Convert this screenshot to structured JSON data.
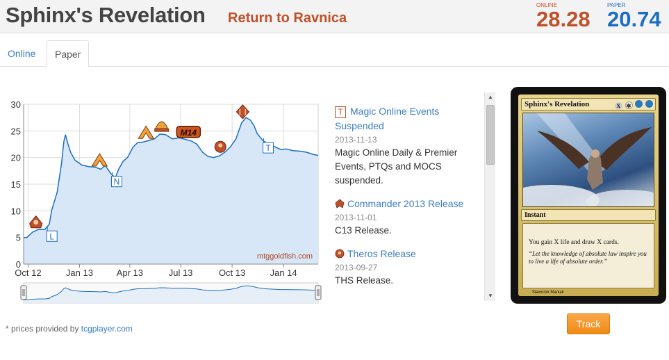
{
  "header": {
    "card_name": "Sphinx's Revelation",
    "set_name": "Return to Ravnica",
    "online_label": "ONLINE",
    "online_price": "28.28",
    "paper_label": "PAPER",
    "paper_price": "20.74"
  },
  "tabs": [
    {
      "label": "Online",
      "active": false
    },
    {
      "label": "Paper",
      "active": true
    }
  ],
  "chart_data": {
    "type": "area",
    "title": "",
    "xlabel": "",
    "ylabel": "",
    "ylim": [
      0,
      30
    ],
    "y_ticks": [
      "0",
      "5",
      "10",
      "15",
      "20",
      "25",
      "30"
    ],
    "x_ticks": [
      "Oct 12",
      "Jan 13",
      "Apr 13",
      "Jul 13",
      "Oct 13",
      "Jan 14"
    ],
    "x_tick_days": [
      0,
      92,
      182,
      273,
      365,
      457
    ],
    "x_range_days": [
      -8,
      519
    ],
    "watermark": "mtggoldfish.com",
    "grid": true,
    "series": [
      {
        "color": "#1b6ec2",
        "fill": "#d7e7f7",
        "points": [
          [
            -8,
            5.0
          ],
          [
            -2,
            5.0
          ],
          [
            8,
            6.0
          ],
          [
            18,
            6.5
          ],
          [
            30,
            6.5
          ],
          [
            38,
            7.5
          ],
          [
            42,
            10
          ],
          [
            52,
            13.5
          ],
          [
            60,
            19
          ],
          [
            64,
            23
          ],
          [
            67,
            24.3
          ],
          [
            70,
            23
          ],
          [
            76,
            21
          ],
          [
            84,
            19.5
          ],
          [
            96,
            18.6
          ],
          [
            108,
            18.3
          ],
          [
            120,
            18.2
          ],
          [
            130,
            17.8
          ],
          [
            138,
            18.5
          ],
          [
            148,
            17.0
          ],
          [
            156,
            16.2
          ],
          [
            162,
            17.8
          ],
          [
            170,
            19.3
          ],
          [
            178,
            20.0
          ],
          [
            188,
            22.0
          ],
          [
            196,
            22.8
          ],
          [
            206,
            22.9
          ],
          [
            216,
            23.2
          ],
          [
            226,
            23.5
          ],
          [
            236,
            24.4
          ],
          [
            246,
            24.3
          ],
          [
            258,
            23.5
          ],
          [
            270,
            23.7
          ],
          [
            282,
            23.4
          ],
          [
            292,
            23.1
          ],
          [
            302,
            22.5
          ],
          [
            312,
            21.0
          ],
          [
            322,
            20.2
          ],
          [
            332,
            20.0
          ],
          [
            342,
            20.3
          ],
          [
            352,
            21.0
          ],
          [
            362,
            22.0
          ],
          [
            372,
            23.5
          ],
          [
            382,
            26.5
          ],
          [
            390,
            27.5
          ],
          [
            398,
            27.0
          ],
          [
            404,
            26.0
          ],
          [
            410,
            24.5
          ],
          [
            420,
            23.2
          ],
          [
            430,
            22.5
          ],
          [
            442,
            22.0
          ],
          [
            452,
            21.5
          ],
          [
            462,
            21.6
          ],
          [
            474,
            21.3
          ],
          [
            486,
            21.2
          ],
          [
            498,
            21.0
          ],
          [
            510,
            20.6
          ],
          [
            519,
            20.4
          ]
        ]
      }
    ],
    "event_markers": [
      {
        "label": "L",
        "day": 32
      },
      {
        "label": "N",
        "day": 148
      },
      {
        "label": "T",
        "day": 419
      }
    ]
  },
  "events": [
    {
      "icon": "T",
      "title": "Magic Online Events Suspended",
      "date": "2013-11-13",
      "desc": "Magic Online Daily & Premier Events, PTQs and MOCS suspended."
    },
    {
      "icon": "commander-icon",
      "title": "Commander 2013 Release",
      "date": "2013-11-01",
      "desc": "C13 Release."
    },
    {
      "icon": "theros-icon",
      "title": "Theros Release",
      "date": "2013-09-27",
      "desc": "THS Release."
    }
  ],
  "card_image": {
    "name": "Sphinx's Revelation",
    "type_line": "Instant",
    "rules_text": "You gain X life and draw X cards.",
    "flavor_text": "“Let the knowledge of absolute law inspire you to live a life of absolute order.”",
    "artist": "Slawomir Maniak",
    "colors": {
      "white": "#f6f1d6",
      "blue": "#2b78c2",
      "gold": "#d9bc5a"
    }
  },
  "track_button": "Track",
  "footer": {
    "prefix": "* prices provided by ",
    "link": "tcgplayer.com"
  }
}
